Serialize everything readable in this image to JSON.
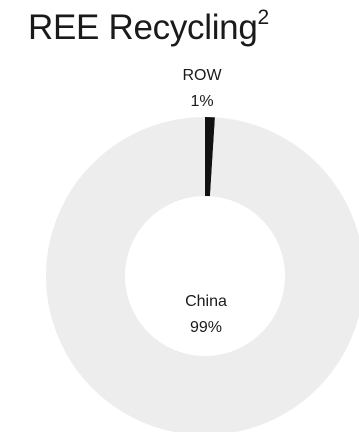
{
  "title": {
    "text": "REE Recycling",
    "superscript": "2"
  },
  "chart_data": {
    "type": "pie",
    "variant": "donut",
    "title": "REE Recycling",
    "categories": [
      "ROW",
      "China"
    ],
    "values": [
      1,
      99
    ],
    "value_labels": [
      "1%",
      "99%"
    ],
    "colors": {
      "ROW": "#111111",
      "China": "#ededed"
    },
    "legend": "none"
  }
}
